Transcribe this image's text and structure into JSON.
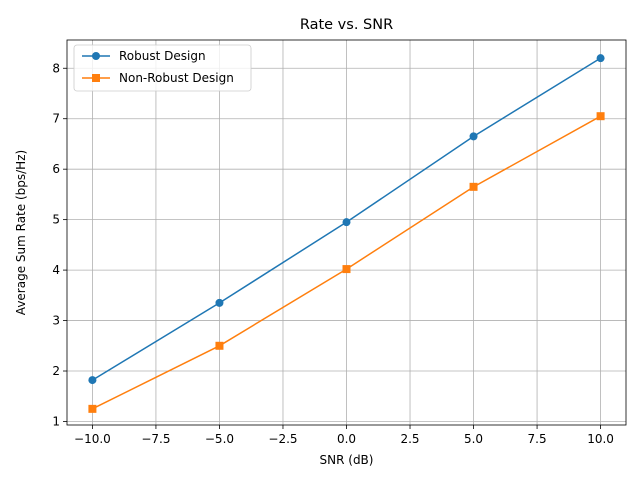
{
  "chart_data": {
    "type": "line",
    "title": "Rate vs. SNR",
    "xlabel": "SNR (dB)",
    "ylabel": "Average Sum Rate (bps/Hz)",
    "x": [
      -10,
      -5,
      0,
      5,
      10
    ],
    "xlim": [
      -11,
      11
    ],
    "ylim": [
      0.93,
      8.56
    ],
    "xticks": [
      -10.0,
      -7.5,
      -5.0,
      -2.5,
      0.0,
      2.5,
      5.0,
      7.5,
      10.0
    ],
    "xtick_labels": [
      "−10.0",
      "−7.5",
      "−5.0",
      "−2.5",
      "0.0",
      "2.5",
      "5.0",
      "7.5",
      "10.0"
    ],
    "yticks": [
      1,
      2,
      3,
      4,
      5,
      6,
      7,
      8
    ],
    "ytick_labels": [
      "1",
      "2",
      "3",
      "4",
      "5",
      "6",
      "7",
      "8"
    ],
    "grid": true,
    "legend_position": "top-left",
    "series": [
      {
        "name": "Robust Design",
        "values": [
          1.82,
          3.35,
          4.95,
          6.65,
          8.2
        ],
        "color": "#1f77b4",
        "marker": "circle"
      },
      {
        "name": "Non-Robust Design",
        "values": [
          1.25,
          2.5,
          4.02,
          5.65,
          7.05
        ],
        "color": "#ff7f0e",
        "marker": "square"
      }
    ]
  }
}
